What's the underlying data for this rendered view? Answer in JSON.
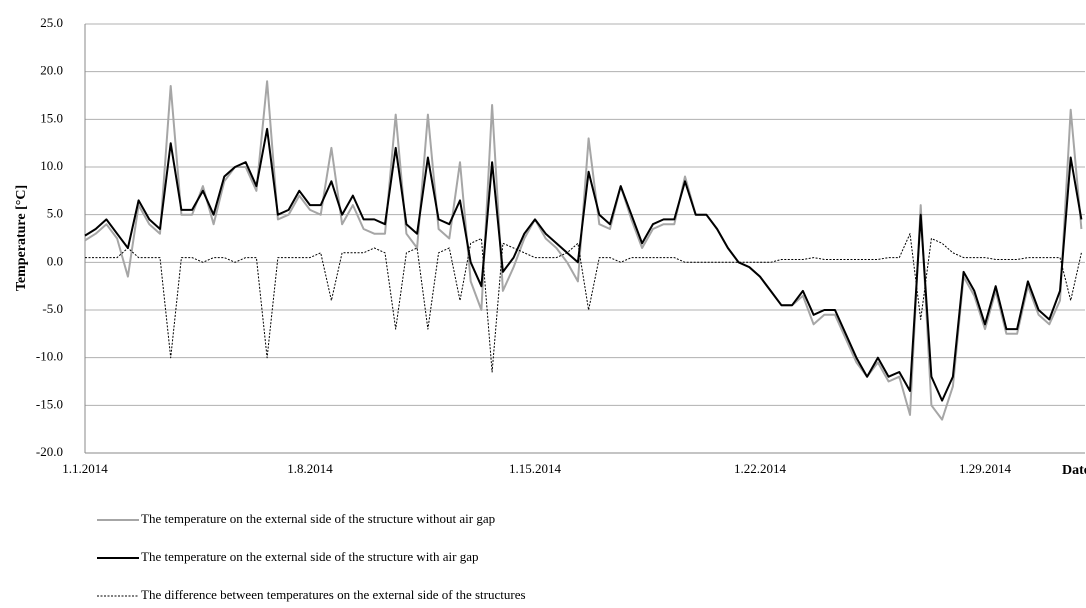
{
  "chart_data": {
    "type": "line",
    "y_label": "Temperature  [°C]",
    "x_label": "Date",
    "categories": [
      "1.1.2014",
      null,
      null,
      null,
      null,
      null,
      null,
      null,
      null,
      null,
      null,
      null,
      null,
      null,
      null,
      null,
      null,
      null,
      null,
      null,
      null,
      "1.8.2014",
      null,
      null,
      null,
      null,
      null,
      null,
      null,
      null,
      null,
      null,
      null,
      null,
      null,
      null,
      null,
      null,
      null,
      null,
      null,
      null,
      "1.15.2014",
      null,
      null,
      null,
      null,
      null,
      null,
      null,
      null,
      null,
      null,
      null,
      null,
      null,
      null,
      null,
      null,
      null,
      null,
      null,
      null,
      "1.22.2014",
      null,
      null,
      null,
      null,
      null,
      null,
      null,
      null,
      null,
      null,
      null,
      null,
      null,
      null,
      null,
      null,
      null,
      null,
      null,
      null,
      "1.29.2014",
      null,
      null,
      null,
      null,
      null,
      null,
      null,
      null,
      null
    ],
    "series": [
      {
        "name": "The temperature on the external side of the structure without air gap",
        "color": "#a6a6a6",
        "width": 2,
        "dashed": false,
        "values": [
          2.3,
          3,
          4,
          2.5,
          -1.5,
          6,
          4,
          3,
          18.5,
          5,
          5,
          8,
          4,
          8.5,
          10,
          10,
          7.5,
          19,
          4.5,
          5,
          7,
          5.5,
          5,
          12,
          4,
          6,
          3.5,
          3,
          3,
          15.5,
          3,
          1.5,
          15.5,
          3.5,
          2.5,
          10.5,
          -2,
          -5,
          16.5,
          -3,
          -0.5,
          2.5,
          4.5,
          2.5,
          1.5,
          0,
          -2,
          13,
          4,
          3.5,
          8,
          4.5,
          1.5,
          3.5,
          4,
          4,
          9,
          5,
          5,
          3.5,
          1.5,
          0,
          -0.5,
          -1.5,
          -3,
          -4.5,
          -4.5,
          -3.5,
          -6.5,
          -5.5,
          -5.5,
          -8,
          -10.5,
          -12,
          -10.5,
          -12.5,
          -12,
          -16,
          6,
          -15,
          -16.5,
          -13,
          -1.5,
          -3.5,
          -7,
          -3,
          -7.5,
          -7.5,
          -2.5,
          -5.5,
          -6.5,
          -4,
          16,
          3.5
        ]
      },
      {
        "name": "The temperature on the external side of the structure with air gap",
        "color": "#000000",
        "width": 2,
        "dashed": false,
        "values": [
          2.8,
          3.5,
          4.5,
          3,
          1.5,
          6.5,
          4.5,
          3.5,
          12.5,
          5.5,
          5.5,
          7.5,
          5,
          9,
          10,
          10.5,
          8,
          14,
          5,
          5.5,
          7.5,
          6,
          6,
          8.5,
          5,
          7,
          4.5,
          4.5,
          4,
          12,
          4,
          3,
          11,
          4.5,
          4,
          6.5,
          0,
          -2.5,
          10.5,
          -1,
          0.5,
          3,
          4.5,
          3,
          2,
          1,
          0,
          9.5,
          5,
          4,
          8,
          5,
          2,
          4,
          4.5,
          4.5,
          8.5,
          5,
          5,
          3.5,
          1.5,
          0,
          -0.5,
          -1.5,
          -3,
          -4.5,
          -4.5,
          -3,
          -5.5,
          -5,
          -5,
          -7.5,
          -10,
          -12,
          -10,
          -12,
          -11.5,
          -13.5,
          5,
          -12,
          -14.5,
          -12,
          -1,
          -3,
          -6.5,
          -2.5,
          -7,
          -7,
          -2,
          -5,
          -6,
          -3,
          11,
          4.5
        ]
      },
      {
        "name": "The difference between temperatures on the external side of the structures",
        "color": "#000000",
        "width": 1,
        "dashed": true,
        "values": [
          0.5,
          0.5,
          0.5,
          0.5,
          1.5,
          0.5,
          0.5,
          0.5,
          -10,
          0.5,
          0.5,
          0,
          0.5,
          0.5,
          0,
          0.5,
          0.5,
          -10,
          0.5,
          0.5,
          0.5,
          0.5,
          1,
          -4,
          1,
          1,
          1,
          1.5,
          1,
          -7,
          1,
          1.5,
          -7,
          1,
          1.5,
          -4,
          2,
          2.5,
          -11.5,
          2,
          1.5,
          1,
          0.5,
          0.5,
          0.5,
          1,
          2,
          -5,
          0.5,
          0.5,
          0,
          0.5,
          0.5,
          0.5,
          0.5,
          0.5,
          0,
          0,
          0,
          0,
          0,
          0,
          0,
          0,
          0,
          0.3,
          0.3,
          0.3,
          0.5,
          0.3,
          0.3,
          0.3,
          0.3,
          0.3,
          0.3,
          0.5,
          0.5,
          3,
          -6,
          2.5,
          2,
          1,
          0.5,
          0.5,
          0.5,
          0.3,
          0.3,
          0.3,
          0.5,
          0.5,
          0.5,
          0.5,
          -4,
          1
        ]
      }
    ],
    "ylim": [
      -20,
      25
    ],
    "yticks": [
      {
        "value": -20,
        "label": "-20.0"
      },
      {
        "value": -15,
        "label": "-15.0"
      },
      {
        "value": -10,
        "label": "-10.0"
      },
      {
        "value": -5,
        "label": "-5.0"
      },
      {
        "value": 0,
        "label": "0.0"
      },
      {
        "value": 5,
        "label": "5.0"
      },
      {
        "value": 10,
        "label": "10.0"
      },
      {
        "value": 15,
        "label": "15.0"
      },
      {
        "value": 20,
        "label": "20.0"
      },
      {
        "value": 25,
        "label": "25.0"
      }
    ],
    "grid": true
  }
}
